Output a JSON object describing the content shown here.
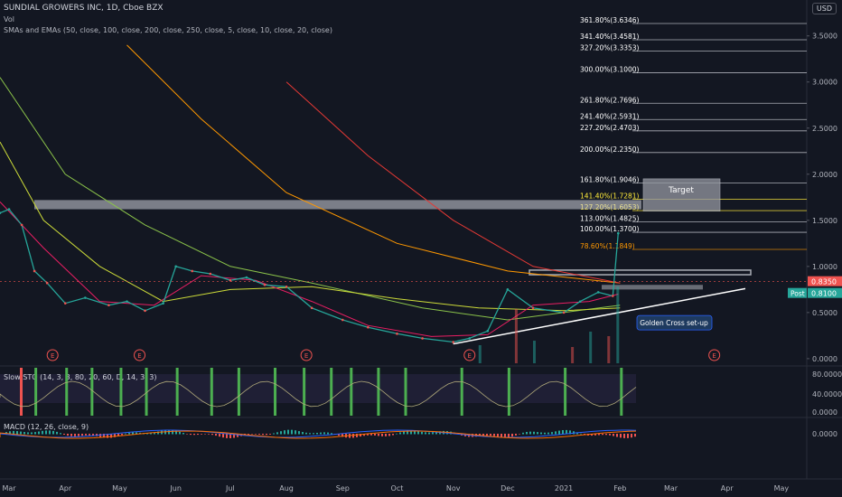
{
  "header": {
    "title": "SUNDIAL GROWERS INC, 1D, Cboe BZX",
    "vol_label": "Vol",
    "ma_label": "SMAs and EMAs (50, close, 100, close, 200, close, 250, close, 5, close, 10, close, 20, close)",
    "currency": "USD"
  },
  "colors": {
    "background": "#131722",
    "up": "#26a69a",
    "down": "#ef5350",
    "fib_line": "#d1d4dc",
    "fib_label": "#ffffff",
    "golden": "#ffeb3b",
    "orange_fib": "#ff9800"
  },
  "chart_data": {
    "type": "line",
    "price_axis": {
      "ticks": [
        0.0,
        0.5,
        1.0,
        1.5,
        2.0,
        2.5,
        3.0,
        3.5
      ],
      "ylim": [
        -0.05,
        3.85
      ]
    },
    "x_axis": {
      "ticks": [
        "Mar",
        "Apr",
        "May",
        "Jun",
        "Jul",
        "Aug",
        "Sep",
        "Oct",
        "Nov",
        "Dec",
        "2021",
        "Feb",
        "Mar",
        "Apr",
        "May"
      ],
      "range": [
        "2020-02-25",
        "2021-05-15"
      ]
    },
    "last_price": {
      "value": "0.8350",
      "post_label": "Post",
      "post_value": "0.8100"
    },
    "price_series": {
      "dates": [
        "2020-02-25",
        "2020-03-01",
        "2020-03-08",
        "2020-03-15",
        "2020-03-22",
        "2020-04-01",
        "2020-04-12",
        "2020-04-25",
        "2020-05-05",
        "2020-05-15",
        "2020-05-25",
        "2020-06-01",
        "2020-06-10",
        "2020-06-20",
        "2020-07-01",
        "2020-07-10",
        "2020-07-20",
        "2020-08-01",
        "2020-08-15",
        "2020-09-01",
        "2020-09-15",
        "2020-10-01",
        "2020-10-15",
        "2020-11-01",
        "2020-11-10",
        "2020-11-20",
        "2020-12-01",
        "2020-12-15",
        "2021-01-01",
        "2021-01-10",
        "2021-01-20",
        "2021-01-28",
        "2021-01-31"
      ],
      "values": [
        1.58,
        1.62,
        1.45,
        0.95,
        0.82,
        0.6,
        0.66,
        0.58,
        0.62,
        0.52,
        0.6,
        1.0,
        0.95,
        0.92,
        0.85,
        0.88,
        0.8,
        0.78,
        0.55,
        0.42,
        0.34,
        0.27,
        0.22,
        0.18,
        0.22,
        0.3,
        0.75,
        0.55,
        0.5,
        0.62,
        0.72,
        0.68,
        1.36
      ]
    },
    "fibonacci": [
      {
        "label": "361.80%(3.6346)",
        "value": 3.6346,
        "kind": "plain"
      },
      {
        "label": "341.40%(3.4581)",
        "value": 3.4581,
        "kind": "plain"
      },
      {
        "label": "327.20%(3.3353)",
        "value": 3.3353,
        "kind": "plain"
      },
      {
        "label": "300.00%(3.1000)",
        "value": 3.1,
        "kind": "plain"
      },
      {
        "label": "261.80%(2.7696)",
        "value": 2.7696,
        "kind": "plain"
      },
      {
        "label": "241.40%(2.5931)",
        "value": 2.5931,
        "kind": "plain"
      },
      {
        "label": "227.20%(2.4703)",
        "value": 2.4703,
        "kind": "plain"
      },
      {
        "label": "200.00%(2.2350)",
        "value": 2.235,
        "kind": "plain"
      },
      {
        "label": "161.80%(1.9046)",
        "value": 1.9046,
        "kind": "plain"
      },
      {
        "label": "141.40%(1.7281)",
        "value": 1.7281,
        "kind": "golden"
      },
      {
        "label": "127.20%(1.6053)",
        "value": 1.6053,
        "kind": "golden"
      },
      {
        "label": "113.00%(1.4825)",
        "value": 1.4825,
        "kind": "plain"
      },
      {
        "label": "100.00%(1.3700)",
        "value": 1.37,
        "kind": "plain"
      },
      {
        "label": "78.60%(1.1849)",
        "value": 1.1849,
        "kind": "orange"
      }
    ],
    "annotations": {
      "target": "Target",
      "golden_cross": "Golden Cross set-up",
      "earnings_marker": "E"
    },
    "slow_sto": {
      "label": "Slow STO (14, 3, 3, 80, 20, 60, D, 14, 3, 3)",
      "ticks": [
        "80.0000",
        "40.0000",
        "0.0000"
      ]
    },
    "macd": {
      "label": "MACD (12, 26, close, 9)",
      "ticks": [
        "0.0000"
      ]
    }
  }
}
